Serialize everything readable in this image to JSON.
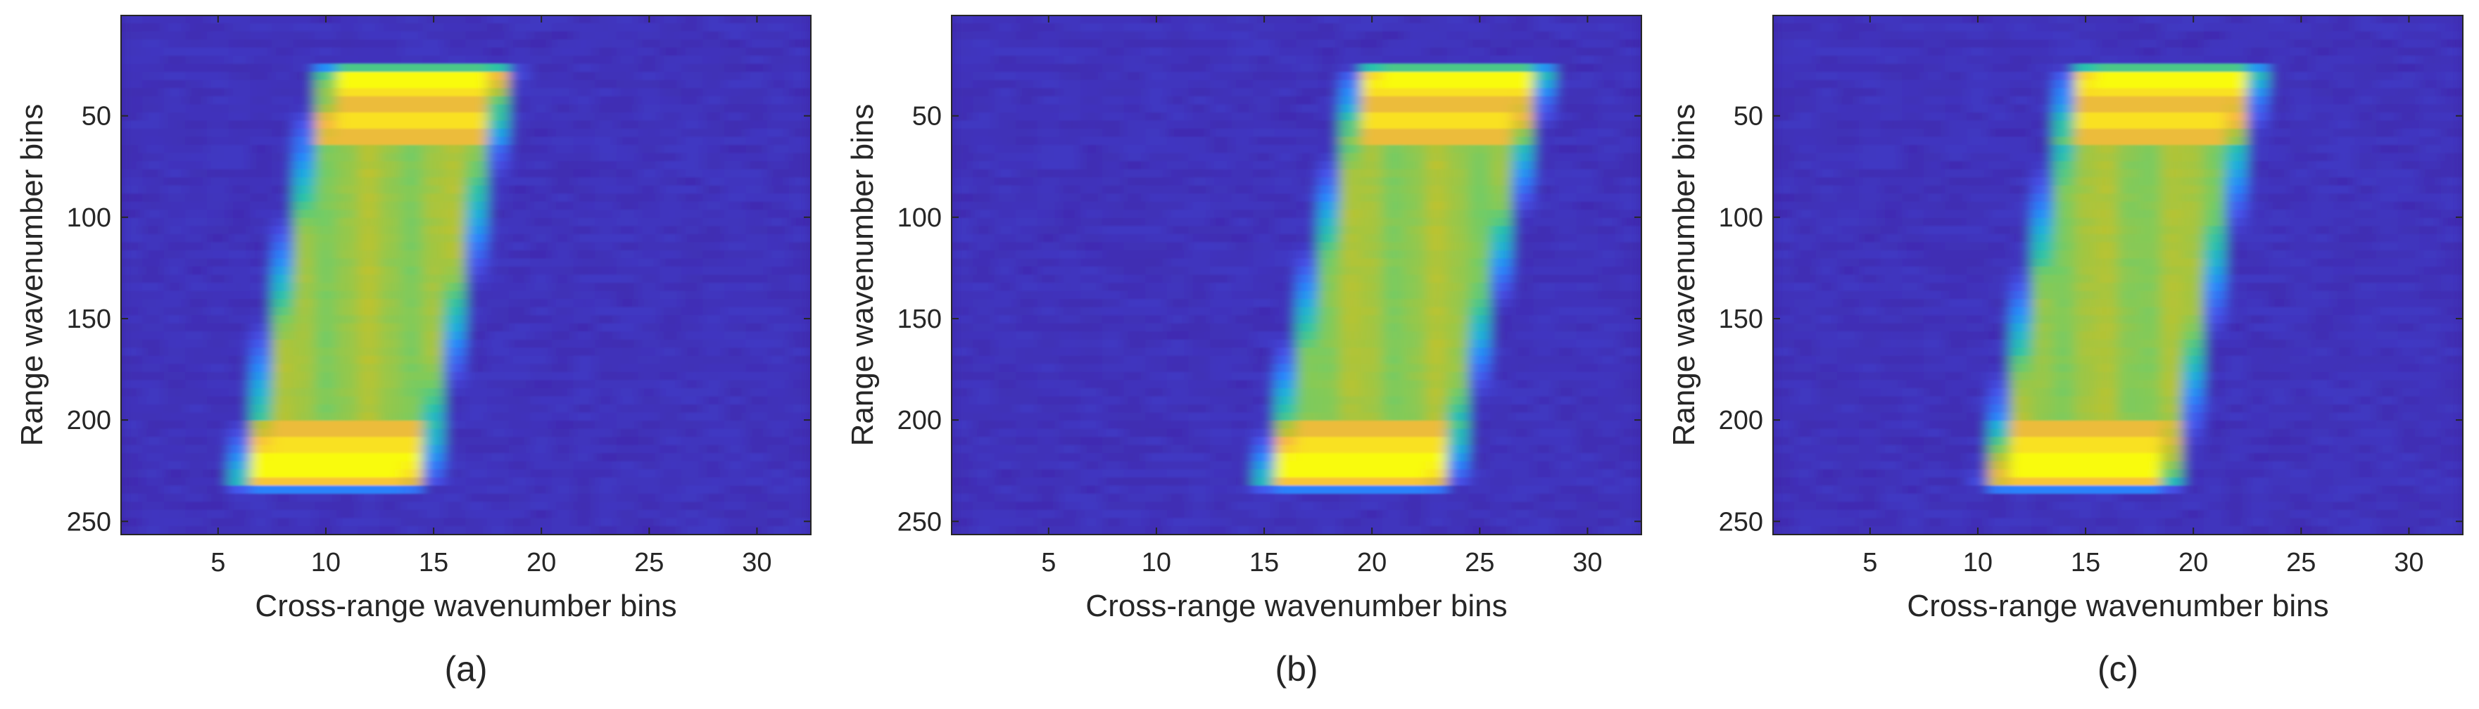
{
  "chart_data": [
    {
      "type": "heatmap",
      "panel_label": "(a)",
      "xlabel": "Cross-range wavenumber bins",
      "ylabel": "Range wavenumber bins",
      "xlim": [
        0.5,
        32.5
      ],
      "ylim": [
        256.5,
        0.5
      ],
      "y_reversed": true,
      "xticks": [
        5,
        10,
        15,
        20,
        25,
        30
      ],
      "yticks": [
        50,
        100,
        150,
        200,
        250
      ],
      "colormap": "parula",
      "bright_region": {
        "bottom_left_col": 6.5,
        "bottom_right_col": 14.0,
        "top_left_col": 10.5,
        "top_right_col": 18.0,
        "top_row": 28,
        "bottom_row": 232
      }
    },
    {
      "type": "heatmap",
      "panel_label": "(b)",
      "xlabel": "Cross-range wavenumber bins",
      "ylabel": "Range wavenumber bins",
      "xlim": [
        0.5,
        32.5
      ],
      "ylim": [
        256.5,
        0.5
      ],
      "y_reversed": true,
      "xticks": [
        5,
        10,
        15,
        20,
        25,
        30
      ],
      "yticks": [
        50,
        100,
        150,
        200,
        250
      ],
      "colormap": "parula",
      "bright_region": {
        "bottom_left_col": 15.5,
        "bottom_right_col": 23.0,
        "top_left_col": 20.0,
        "top_right_col": 27.5,
        "top_row": 28,
        "bottom_row": 232
      }
    },
    {
      "type": "heatmap",
      "panel_label": "(c)",
      "xlabel": "Cross-range wavenumber bins",
      "ylabel": "Range wavenumber bins",
      "xlim": [
        0.5,
        32.5
      ],
      "ylim": [
        256.5,
        0.5
      ],
      "y_reversed": true,
      "xticks": [
        5,
        10,
        15,
        20,
        25,
        30
      ],
      "yticks": [
        50,
        100,
        150,
        200,
        250
      ],
      "colormap": "parula",
      "bright_region": {
        "bottom_left_col": 11.0,
        "bottom_right_col": 18.5,
        "top_left_col": 15.0,
        "top_right_col": 22.5,
        "top_row": 28,
        "bottom_row": 232
      }
    }
  ],
  "colors": {
    "background": "#3e26a8",
    "axis": "#262626"
  }
}
